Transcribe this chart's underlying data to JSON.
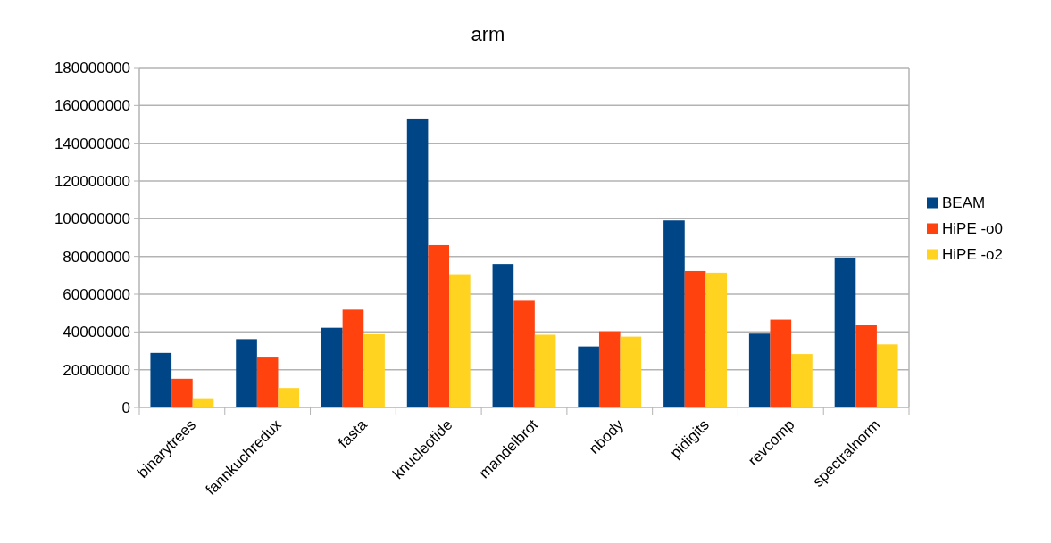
{
  "chart_data": {
    "type": "bar",
    "title": "arm",
    "categories": [
      "binarytrees",
      "fannkuchredux",
      "fasta",
      "knucleotide",
      "mandelbrot",
      "nbody",
      "pidigits",
      "revcomp",
      "spectralnorm"
    ],
    "series": [
      {
        "name": "BEAM",
        "color": "#004586",
        "values": [
          28900000,
          36200000,
          42200000,
          153100000,
          76000000,
          32300000,
          99100000,
          39100000,
          79400000
        ]
      },
      {
        "name": "HiPE -o0",
        "color": "#ff420e",
        "values": [
          15200000,
          26900000,
          51800000,
          86000000,
          56500000,
          40300000,
          72300000,
          46500000,
          43700000
        ]
      },
      {
        "name": "HiPE -o2",
        "color": "#ffd320",
        "values": [
          4900000,
          10300000,
          38800000,
          70600000,
          38500000,
          37500000,
          71400000,
          28300000,
          33400000
        ]
      }
    ],
    "ylim": [
      0,
      180000000
    ],
    "yticks": [
      0,
      20000000,
      40000000,
      60000000,
      80000000,
      100000000,
      120000000,
      140000000,
      160000000,
      180000000
    ],
    "grid": "y",
    "legend": "right"
  }
}
